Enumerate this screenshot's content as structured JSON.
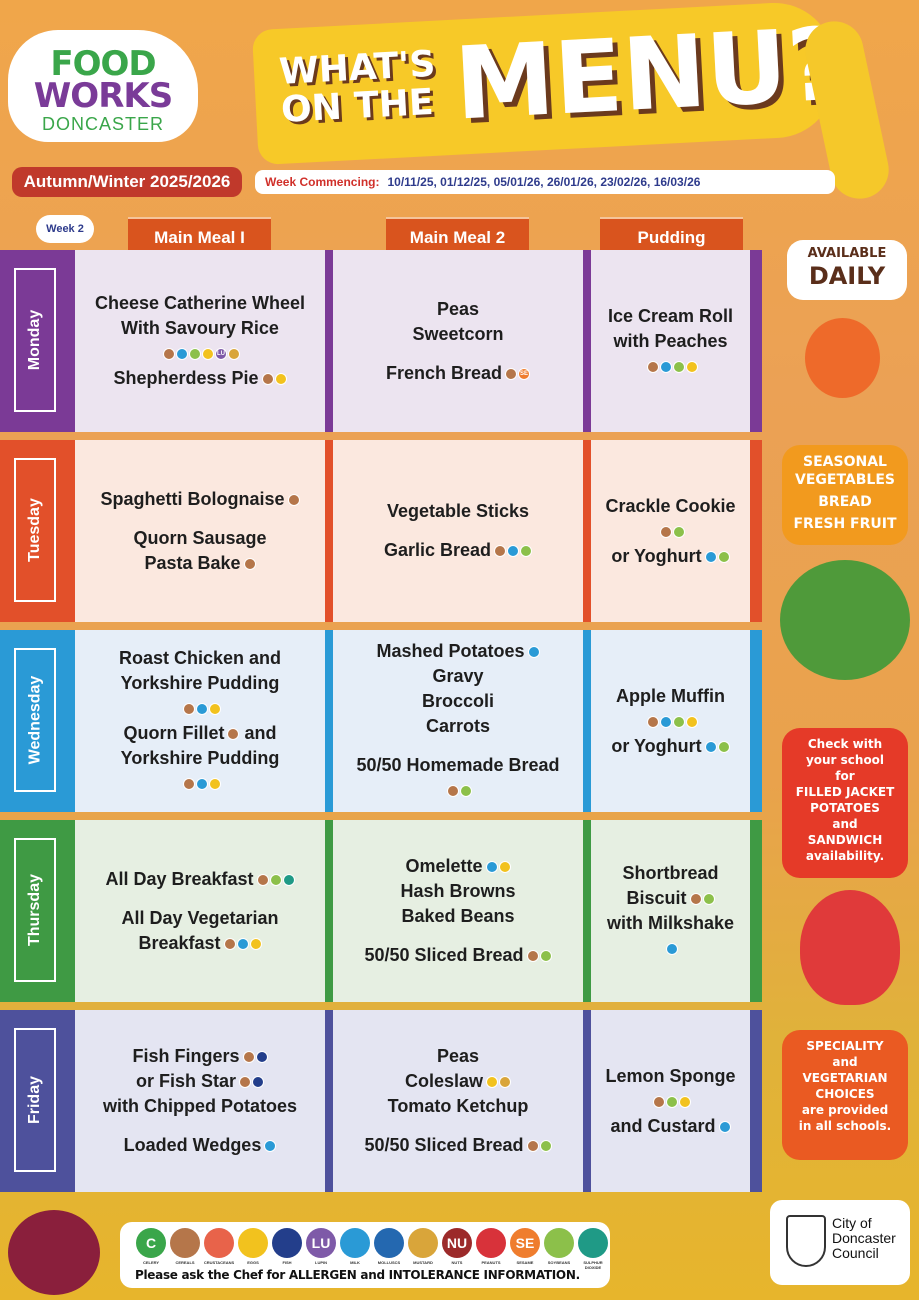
{
  "logo": {
    "line1": "FOOD",
    "line2": "WORKS",
    "line3": "DONCASTER"
  },
  "title": {
    "line1": "WHAT'S ON THE",
    "line2": "MENU?"
  },
  "season": "Autumn/Winter 2025/2026",
  "week_commencing": {
    "label": "Week Commencing:",
    "dates": "10/11/25, 01/12/25, 05/01/26, 26/01/26, 23/02/26, 16/03/26"
  },
  "week": "Week 2",
  "columns": [
    "Main Meal I",
    "Main Meal 2",
    "Pudding"
  ],
  "allergens": [
    {
      "code": "C",
      "name": "CELERY",
      "symbol": "C",
      "color": "#3aa64a"
    },
    {
      "code": "CE",
      "name": "CEREALS",
      "symbol": "",
      "color": "#b5764a"
    },
    {
      "code": "CR",
      "name": "CRUSTACEANS",
      "symbol": "",
      "color": "#e8634a"
    },
    {
      "code": "EG",
      "name": "EGGS",
      "symbol": "",
      "color": "#f2c21e"
    },
    {
      "code": "FI",
      "name": "FISH",
      "symbol": "",
      "color": "#233e8b"
    },
    {
      "code": "LU",
      "name": "LUPIN",
      "symbol": "LU",
      "color": "#7e5aa8"
    },
    {
      "code": "MI",
      "name": "MILK",
      "symbol": "",
      "color": "#2a9ad6"
    },
    {
      "code": "MO",
      "name": "MOLLUSCS",
      "symbol": "",
      "color": "#2468b0"
    },
    {
      "code": "MU",
      "name": "MUSTARD",
      "symbol": "",
      "color": "#d9a53a"
    },
    {
      "code": "NU",
      "name": "NUTS",
      "symbol": "NU",
      "color": "#9c2a2a"
    },
    {
      "code": "PE",
      "name": "PEANUTS",
      "symbol": "",
      "color": "#d8323a"
    },
    {
      "code": "SE",
      "name": "SESAME",
      "symbol": "SE",
      "color": "#ef7d2e"
    },
    {
      "code": "SO",
      "name": "SOYBEANS",
      "symbol": "",
      "color": "#8cc04a"
    },
    {
      "code": "SU",
      "name": "SULPHUR DIOXIDE",
      "symbol": "",
      "color": "#1f9a86"
    }
  ],
  "rows": [
    {
      "day": "Monday",
      "color": "#7b3a96",
      "bg": "#ece4f0",
      "cells": [
        [
          {
            "text": "Cheese Catherine Wheel"
          },
          {
            "text": "With Savoury Rice"
          },
          {
            "text": "",
            "allergens": [
              "CE",
              "MI",
              "SO",
              "EG",
              "LU",
              "MU"
            ]
          },
          {
            "text": "Shepherdess Pie",
            "allergens": [
              "CE",
              "EG"
            ]
          }
        ],
        [
          {
            "text": "Peas"
          },
          {
            "text": "Sweetcorn"
          },
          {
            "gap": true
          },
          {
            "text": "French Bread",
            "allergens": [
              "CE",
              "SE"
            ]
          }
        ],
        [
          {
            "text": "Ice Cream Roll"
          },
          {
            "text": "with Peaches"
          },
          {
            "text": "",
            "allergens": [
              "CE",
              "MI",
              "SO",
              "EG"
            ]
          }
        ]
      ]
    },
    {
      "day": "Tuesday",
      "color": "#e2502a",
      "bg": "#fbe8df",
      "cells": [
        [
          {
            "text": "Spaghetti Bolognaise",
            "allergens": [
              "CE"
            ]
          },
          {
            "gap": true
          },
          {
            "text": "Quorn Sausage"
          },
          {
            "text": "Pasta Bake",
            "allergens": [
              "CE"
            ]
          }
        ],
        [
          {
            "text": "Vegetable Sticks"
          },
          {
            "gap": true
          },
          {
            "text": "Garlic Bread",
            "allergens": [
              "CE",
              "MI",
              "SO"
            ]
          }
        ],
        [
          {
            "text": "Crackle Cookie"
          },
          {
            "text": "",
            "allergens": [
              "CE",
              "SO"
            ]
          },
          {
            "text": "or Yoghurt",
            "allergens": [
              "MI",
              "SO"
            ]
          }
        ]
      ]
    },
    {
      "day": "Wednesday",
      "color": "#2a9ad6",
      "bg": "#e6eef8",
      "cells": [
        [
          {
            "text": "Roast Chicken and"
          },
          {
            "text": "Yorkshire Pudding"
          },
          {
            "text": "",
            "allergens": [
              "CE",
              "MI",
              "EG"
            ]
          },
          {
            "text": "Quorn Fillet",
            "allergens": [
              "CE"
            ],
            "after": "and"
          },
          {
            "text": "Yorkshire Pudding"
          },
          {
            "text": "",
            "allergens": [
              "CE",
              "MI",
              "EG"
            ]
          }
        ],
        [
          {
            "text": "Mashed Potatoes",
            "allergens": [
              "MI"
            ]
          },
          {
            "text": "Gravy"
          },
          {
            "text": "Broccoli"
          },
          {
            "text": "Carrots"
          },
          {
            "gap": true
          },
          {
            "text": "50/50 Homemade Bread"
          },
          {
            "text": "",
            "allergens": [
              "CE",
              "SO"
            ]
          }
        ],
        [
          {
            "text": "Apple Muffin"
          },
          {
            "text": "",
            "allergens": [
              "CE",
              "MI",
              "SO",
              "EG"
            ]
          },
          {
            "text": "or Yoghurt",
            "allergens": [
              "MI",
              "SO"
            ]
          }
        ]
      ]
    },
    {
      "day": "Thursday",
      "color": "#3f9a44",
      "bg": "#e6efe2",
      "cells": [
        [
          {
            "text": "All Day Breakfast",
            "allergens": [
              "CE",
              "SO",
              "SU"
            ]
          },
          {
            "gap": true
          },
          {
            "text": "All Day Vegetarian"
          },
          {
            "text": "Breakfast",
            "allergens": [
              "CE",
              "MI",
              "EG"
            ]
          }
        ],
        [
          {
            "text": "Omelette",
            "allergens": [
              "MI",
              "EG"
            ]
          },
          {
            "text": "Hash Browns"
          },
          {
            "text": "Baked Beans"
          },
          {
            "gap": true
          },
          {
            "text": "50/50 Sliced Bread",
            "allergens": [
              "CE",
              "SO"
            ]
          }
        ],
        [
          {
            "text": "Shortbread"
          },
          {
            "text": "Biscuit",
            "allergens": [
              "CE",
              "SO"
            ]
          },
          {
            "text": "with Milkshake"
          },
          {
            "text": "",
            "allergens": [
              "MI"
            ]
          }
        ]
      ]
    },
    {
      "day": "Friday",
      "color": "#4e519c",
      "bg": "#e4e5f2",
      "cells": [
        [
          {
            "text": "Fish Fingers",
            "allergens": [
              "CE",
              "FI"
            ]
          },
          {
            "text": "or Fish Star",
            "allergens": [
              "CE",
              "FI"
            ]
          },
          {
            "text": "with Chipped Potatoes"
          },
          {
            "gap": true
          },
          {
            "text": "Loaded Wedges",
            "allergens": [
              "MI"
            ]
          }
        ],
        [
          {
            "text": "Peas"
          },
          {
            "text": "Coleslaw",
            "allergens": [
              "EG",
              "MU"
            ]
          },
          {
            "text": "Tomato Ketchup"
          },
          {
            "gap": true
          },
          {
            "text": "50/50 Sliced Bread",
            "allergens": [
              "CE",
              "SO"
            ]
          }
        ],
        [
          {
            "text": "Lemon Sponge"
          },
          {
            "text": "",
            "allergens": [
              "CE",
              "SO",
              "EG"
            ]
          },
          {
            "text": "and Custard",
            "allergens": [
              "MI"
            ]
          }
        ]
      ]
    }
  ],
  "sidebar": {
    "available": {
      "line1": "AVAILABLE",
      "line2": "DAILY"
    },
    "daily_items": [
      "SEASONAL VEGETABLES",
      "BREAD",
      "FRESH FRUIT"
    ],
    "check": [
      "Check with",
      "your school",
      "for",
      "FILLED JACKET POTATOES",
      "and",
      "SANDWICH",
      "availability."
    ],
    "speciality": [
      "SPECIALITY",
      "and",
      "VEGETARIAN CHOICES",
      "are provided",
      "in all schools."
    ]
  },
  "footer": {
    "ask": "Please ask the Chef for ALLERGEN and INTOLERANCE INFORMATION.",
    "council": [
      "City of",
      "Doncaster",
      "Council"
    ]
  }
}
